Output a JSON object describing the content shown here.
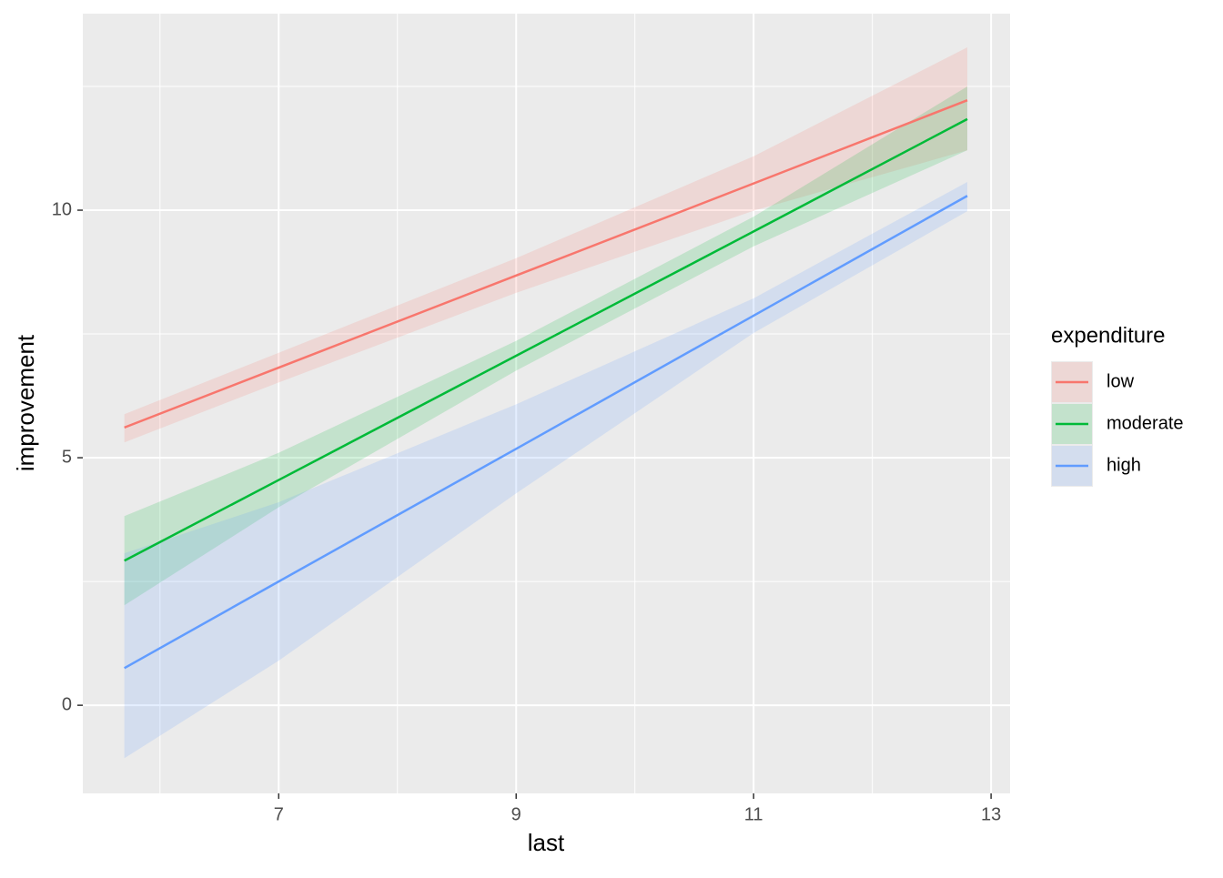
{
  "chart_data": {
    "type": "line",
    "x_label": "last",
    "y_label": "improvement",
    "legend_title": "expenditure",
    "legend_position": "right",
    "xlim": [
      5.35,
      13.16
    ],
    "ylim": [
      -1.78,
      13.97
    ],
    "xticks": [
      7,
      9,
      11,
      13
    ],
    "yticks": [
      0,
      5,
      10
    ],
    "x_minor_ticks": [
      6,
      8,
      10,
      12
    ],
    "y_minor_ticks": [
      2.5,
      7.5,
      12.5
    ],
    "grid": true,
    "x": [
      5.7,
      7,
      9,
      11,
      12.8
    ],
    "series": [
      {
        "name": "low",
        "color": "#F8766D",
        "values": [
          5.61,
          6.82,
          8.68,
          10.54,
          12.22
        ],
        "lower": [
          5.31,
          6.52,
          8.33,
          9.99,
          11.21
        ],
        "upper": [
          5.88,
          7.12,
          9.03,
          11.09,
          13.29
        ]
      },
      {
        "name": "moderate",
        "color": "#00BA38",
        "values": [
          2.92,
          4.55,
          7.06,
          9.57,
          11.84
        ],
        "lower": [
          2.02,
          4.0,
          6.76,
          9.27,
          11.21
        ],
        "upper": [
          3.82,
          5.1,
          7.36,
          9.87,
          12.5
        ]
      },
      {
        "name": "high",
        "color": "#619CFF",
        "values": [
          0.75,
          2.5,
          5.18,
          7.87,
          10.29
        ],
        "lower": [
          -1.07,
          0.9,
          4.28,
          7.52,
          9.98
        ],
        "upper": [
          3.07,
          4.1,
          6.08,
          8.22,
          10.57
        ]
      }
    ]
  }
}
